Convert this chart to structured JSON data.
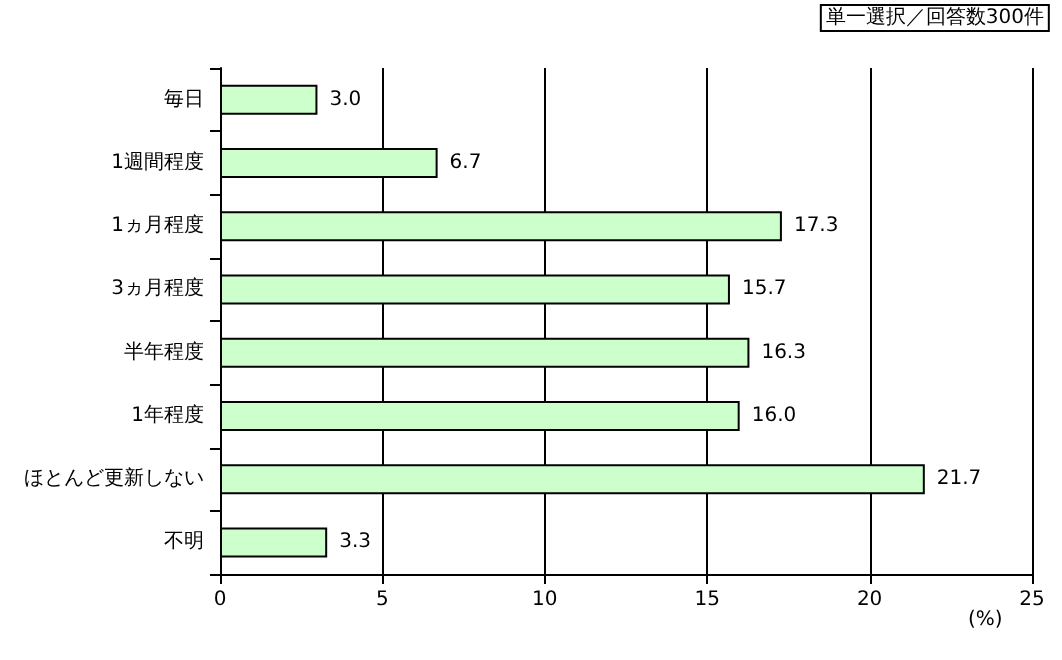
{
  "chart_data": {
    "type": "bar",
    "orientation": "horizontal",
    "categories": [
      "毎日",
      "1週間程度",
      "1ヵ月程度",
      "3ヵ月程度",
      "半年程度",
      "1年程度",
      "ほとんど更新しない",
      "不明"
    ],
    "values": [
      3.0,
      6.7,
      17.3,
      15.7,
      16.3,
      16.0,
      21.7,
      3.3
    ],
    "value_labels": [
      "3.0",
      "6.7",
      "17.3",
      "15.7",
      "16.3",
      "16.0",
      "21.7",
      "3.3"
    ],
    "color": "#ccffcc",
    "xlabel": "(%)",
    "xlim": [
      0,
      25
    ],
    "xticks": [
      0,
      5,
      10,
      15,
      20,
      25
    ],
    "grid": "x",
    "annotations": [
      "単一選択／回答数300件"
    ]
  }
}
